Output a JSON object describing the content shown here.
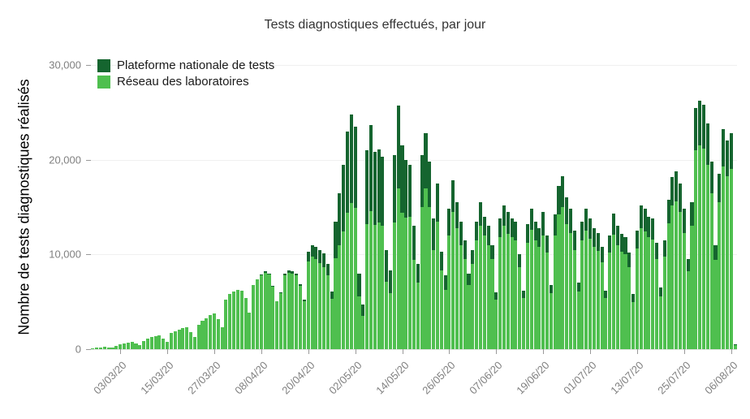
{
  "legend": {
    "items": [
      {
        "label": "Plateforme nationale de tests",
        "color": "#15652f"
      },
      {
        "label": "Réseau des laboratoires",
        "color": "#4fbf4f"
      }
    ]
  },
  "chart_data": {
    "type": "bar",
    "stacked": true,
    "title": "Tests diagnostiques effectués, par jour",
    "xlabel": "",
    "ylabel": "Nombre de tests diagnostiques réalisés",
    "ylim": [
      0,
      30000
    ],
    "yticks": [
      0,
      10000,
      20000,
      30000
    ],
    "ytick_labels": [
      "0",
      "10,000",
      "20,000",
      "30,000"
    ],
    "grid": "horizontal-faint",
    "legend_position": "top-left-inside",
    "x_start_date": "25/02/20",
    "x_tick_labels": [
      "03/03/20",
      "15/03/20",
      "27/03/20",
      "08/04/20",
      "20/04/20",
      "02/05/20",
      "14/05/20",
      "26/05/20",
      "07/06/20",
      "19/06/20",
      "01/07/20",
      "13/07/20",
      "25/07/20",
      "06/08/20"
    ],
    "x_tick_indices": [
      7,
      19,
      31,
      43,
      55,
      67,
      79,
      91,
      103,
      115,
      127,
      139,
      151,
      163
    ],
    "series": [
      {
        "name": "Réseau des laboratoires",
        "color": "#4fbf4f",
        "values": [
          100,
          150,
          200,
          250,
          200,
          150,
          350,
          500,
          600,
          700,
          800,
          600,
          400,
          900,
          1100,
          1300,
          1400,
          1500,
          1100,
          800,
          1700,
          1900,
          2100,
          2200,
          2300,
          1800,
          1300,
          2600,
          3000,
          3300,
          3600,
          3800,
          3200,
          2300,
          5200,
          5800,
          6100,
          6300,
          6200,
          5400,
          3900,
          6800,
          7400,
          7800,
          8100,
          7900,
          6600,
          5100,
          5900,
          7800,
          8100,
          8000,
          7800,
          6700,
          5100,
          9300,
          9800,
          9500,
          9100,
          8700,
          7800,
          5300,
          9600,
          11000,
          12400,
          14400,
          15400,
          14900,
          5600,
          3500,
          13200,
          14600,
          13100,
          13400,
          13000,
          7100,
          5900,
          13400,
          17000,
          14400,
          13900,
          14000,
          9400,
          7000,
          15000,
          17000,
          15000,
          10500,
          13500,
          8300,
          6300,
          12000,
          14500,
          12800,
          11000,
          9500,
          6800,
          9000,
          11500,
          13000,
          12000,
          11000,
          9500,
          5200,
          11800,
          13000,
          12200,
          11800,
          11500,
          8700,
          5400,
          11200,
          12600,
          11500,
          10800,
          12000,
          10200,
          5900,
          12000,
          14200,
          15000,
          13200,
          12300,
          10500,
          6100,
          11500,
          12500,
          11700,
          10800,
          10400,
          9200,
          5400,
          10200,
          12100,
          11000,
          10300,
          10000,
          8700,
          5000,
          10600,
          12800,
          12400,
          11800,
          11600,
          9500,
          5600,
          9800,
          13300,
          15200,
          15600,
          14500,
          12300,
          8200,
          13000,
          21000,
          21500,
          21200,
          19500,
          16500,
          9400,
          15500,
          19300,
          18300,
          19000,
          450
        ]
      },
      {
        "name": "Plateforme nationale de tests",
        "color": "#15652f",
        "values": [
          0,
          0,
          0,
          0,
          0,
          0,
          0,
          0,
          0,
          0,
          0,
          0,
          0,
          0,
          0,
          0,
          0,
          0,
          0,
          0,
          0,
          0,
          0,
          0,
          0,
          0,
          0,
          0,
          0,
          0,
          0,
          0,
          0,
          0,
          0,
          0,
          0,
          0,
          0,
          0,
          0,
          0,
          0,
          100,
          100,
          100,
          100,
          0,
          100,
          200,
          200,
          200,
          200,
          200,
          100,
          1000,
          1200,
          1300,
          1400,
          1400,
          1200,
          800,
          3900,
          5500,
          7100,
          8600,
          9400,
          8600,
          2400,
          1200,
          7800,
          9100,
          7700,
          7700,
          7300,
          3400,
          2400,
          7100,
          8700,
          7100,
          6100,
          5500,
          3600,
          2000,
          5500,
          5800,
          4800,
          3300,
          4000,
          2000,
          1500,
          2800,
          3300,
          2700,
          2500,
          2000,
          1200,
          1500,
          2000,
          2500,
          2000,
          2000,
          1500,
          800,
          2000,
          2200,
          2300,
          2000,
          2000,
          1300,
          800,
          2000,
          2200,
          2000,
          2000,
          2500,
          1800,
          900,
          2200,
          3000,
          3300,
          2800,
          2500,
          2000,
          900,
          2000,
          2300,
          2100,
          2000,
          1900,
          1600,
          800,
          1800,
          2200,
          2000,
          1900,
          1800,
          1500,
          800,
          1900,
          2400,
          2400,
          2200,
          2200,
          1700,
          900,
          1700,
          2500,
          3000,
          3200,
          3000,
          2500,
          1300,
          2500,
          4500,
          4700,
          4600,
          4300,
          3300,
          1600,
          3000,
          3900,
          3700,
          3800,
          50
        ]
      }
    ]
  }
}
